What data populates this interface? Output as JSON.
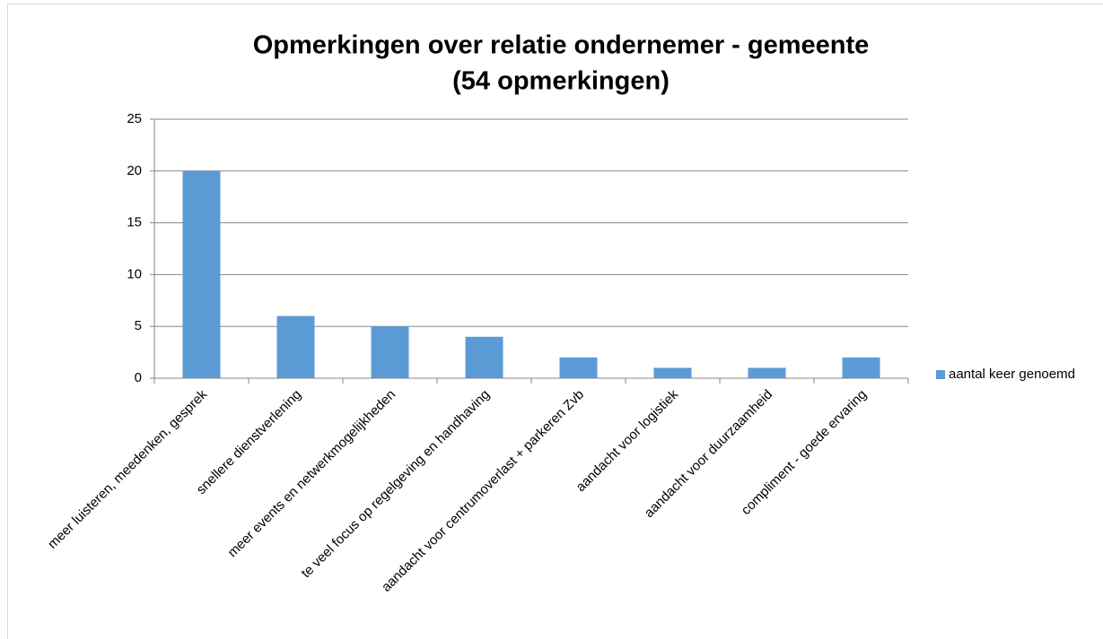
{
  "chart_data": {
    "type": "bar",
    "title": [
      "Opmerkingen over relatie ondernemer - gemeente",
      "(54 opmerkingen)"
    ],
    "categories": [
      "meer luisteren, meedenken, gesprek",
      "snellere dienstverlening",
      "meer events en netwerkmogelijkheden",
      "te veel focus op regelgeving en handhaving",
      "aandacht voor centrumoverlast + parkeren Zvb",
      "aandacht voor logistiek",
      "aandacht voor duurzaamheid",
      "compliment - goede ervaring"
    ],
    "series": [
      {
        "name": "aantal keer genoemd",
        "color": "#5b9bd5",
        "values": [
          20,
          6,
          5,
          4,
          2,
          1,
          1,
          2
        ]
      }
    ],
    "ylim": [
      0,
      25
    ],
    "yticks": [
      0,
      5,
      10,
      15,
      20,
      25
    ],
    "grid": true,
    "legend": "right"
  }
}
